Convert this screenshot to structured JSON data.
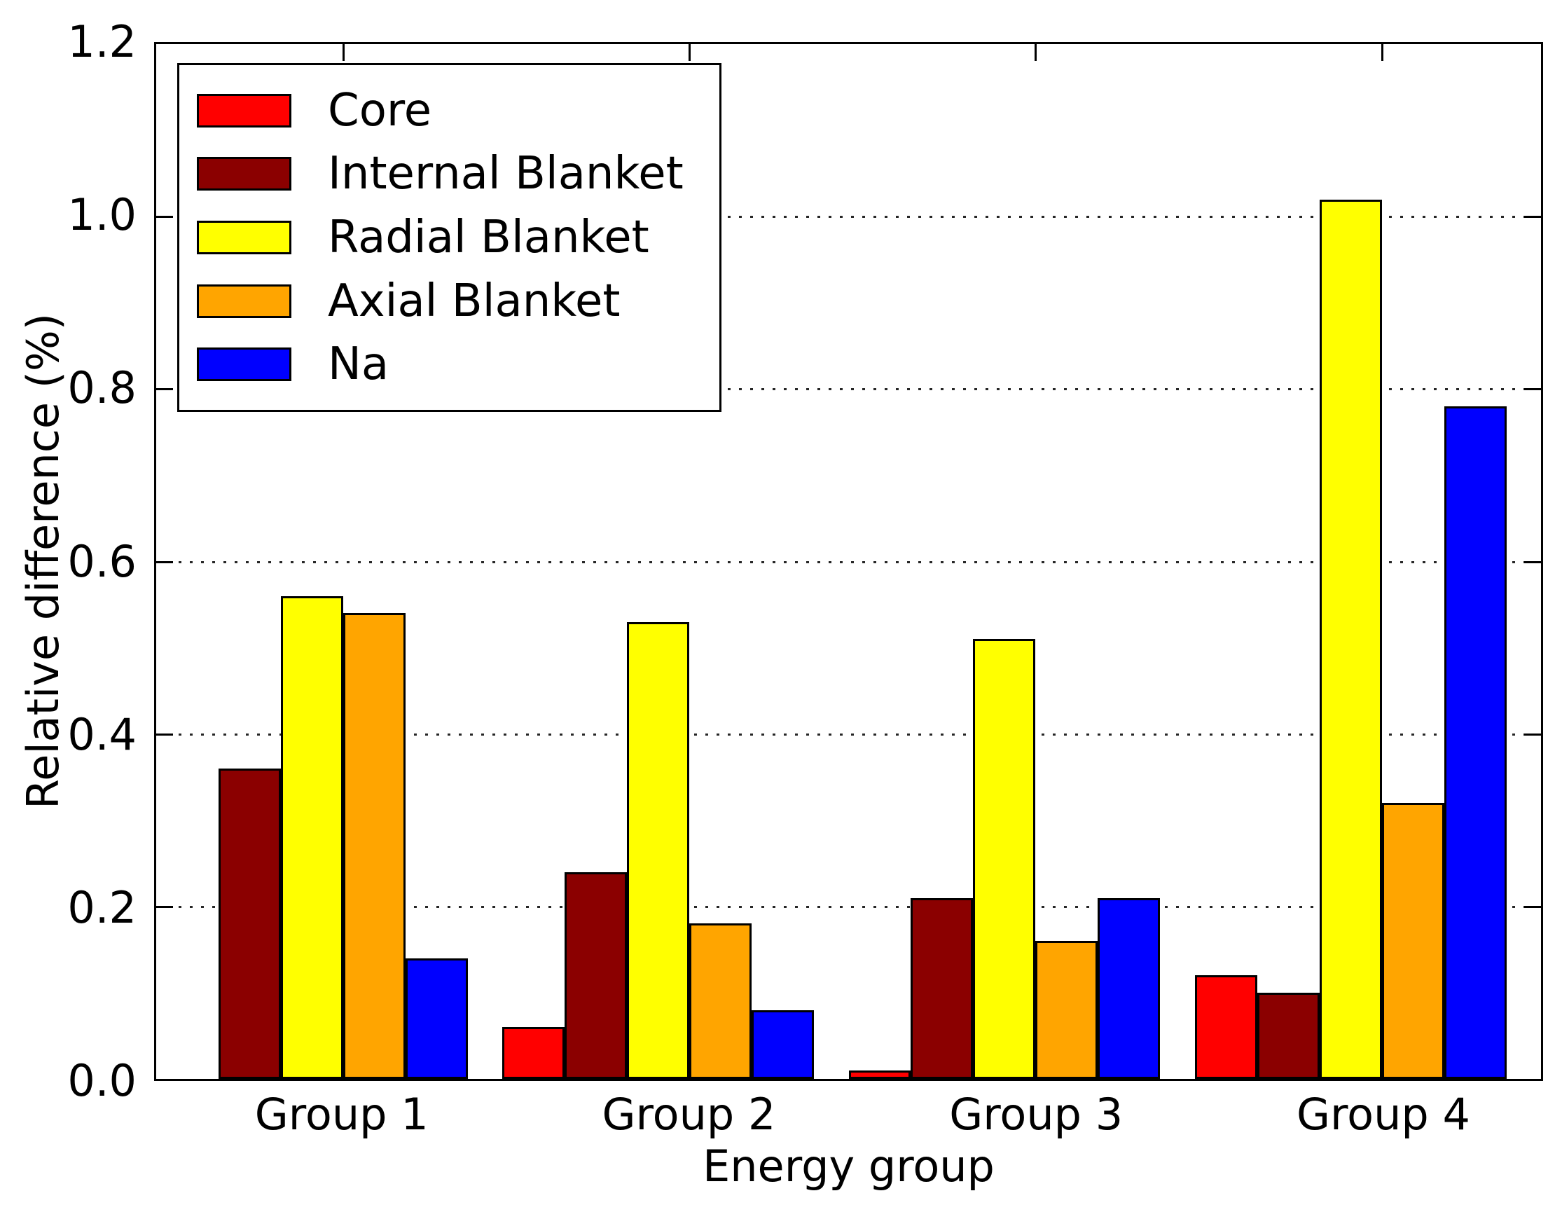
{
  "chart_data": {
    "type": "bar",
    "title": "",
    "xlabel": "Energy group",
    "ylabel": "Relative difference (%)",
    "categories": [
      "Group 1",
      "Group 2",
      "Group 3",
      "Group 4"
    ],
    "series": [
      {
        "name": "Core",
        "color": "#ff0000",
        "values": [
          0.0,
          0.06,
          0.01,
          0.12
        ]
      },
      {
        "name": "Internal Blanket",
        "color": "#8b0000",
        "values": [
          0.36,
          0.24,
          0.21,
          0.1
        ]
      },
      {
        "name": "Radial Blanket",
        "color": "#ffff00",
        "values": [
          0.56,
          0.53,
          0.51,
          1.02
        ]
      },
      {
        "name": "Axial Blanket",
        "color": "#ffa500",
        "values": [
          0.54,
          0.18,
          0.16,
          0.32
        ]
      },
      {
        "name": "Na",
        "color": "#0000ff",
        "values": [
          0.14,
          0.08,
          0.21,
          0.78
        ]
      }
    ],
    "ylim": [
      0,
      1.2
    ],
    "yticks": [
      "0.0",
      "0.2",
      "0.4",
      "0.6",
      "0.8",
      "1.0",
      "1.2"
    ],
    "grid": "horizontal dotted black lines at each y tick",
    "legend_position": "upper left",
    "bar_edge_color": "#000000",
    "background_color": "#ffffff",
    "text_color": "#000000"
  }
}
